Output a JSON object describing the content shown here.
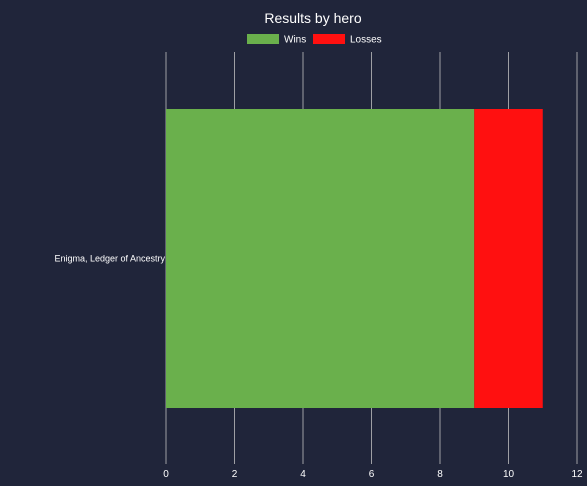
{
  "chart_data": {
    "type": "bar",
    "orientation": "horizontal",
    "stacked": true,
    "title": "Results by hero",
    "categories": [
      "Enigma, Ledger of Ancestry"
    ],
    "series": [
      {
        "name": "Wins",
        "values": [
          9
        ],
        "color": "#6ab04c"
      },
      {
        "name": "Losses",
        "values": [
          2
        ],
        "color": "#ff1010"
      }
    ],
    "xlim": [
      0,
      12
    ],
    "xticks": [
      "0",
      "2",
      "4",
      "6",
      "8",
      "10",
      "12"
    ],
    "grid": true,
    "legend_position": "top-center"
  },
  "colors": {
    "background": "#20253a",
    "grid": "#c8c8c8",
    "text": "#ffffff"
  }
}
